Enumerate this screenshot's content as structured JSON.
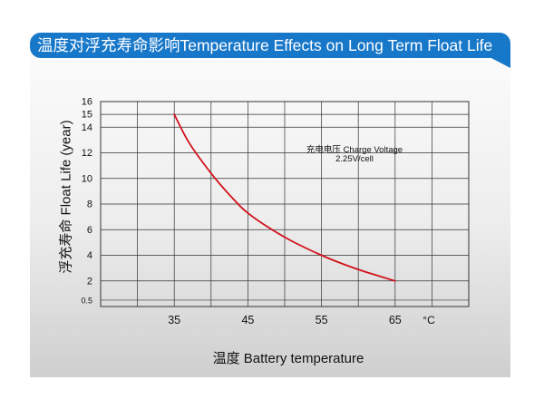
{
  "title": "温度对浮充寿命影响Temperature Effects on Long Term Float Life",
  "chart_data": {
    "type": "line",
    "xlabel": "温度  Battery temperature",
    "ylabel": "浮充寿命  Float Life (year)",
    "x_unit": "°C",
    "x_ticks": [
      35,
      45,
      55,
      65
    ],
    "x_range": [
      25,
      75
    ],
    "y_ticks": [
      "0.5",
      "2",
      "4",
      "6",
      "8",
      "10",
      "12",
      "14",
      "15",
      "16"
    ],
    "y_range": [
      0,
      16
    ],
    "grid": true,
    "annotation": [
      "充电电压 Charge Voltage",
      "2.25V/cell"
    ],
    "series": [
      {
        "color": "#d1121c",
        "points": [
          [
            35,
            15
          ],
          [
            37,
            12.8
          ],
          [
            40,
            10.4
          ],
          [
            43,
            8.4
          ],
          [
            45,
            7.3
          ],
          [
            48,
            6.1
          ],
          [
            51,
            5.1
          ],
          [
            55,
            4.0
          ],
          [
            58,
            3.3
          ],
          [
            61,
            2.7
          ],
          [
            65,
            2.0
          ]
        ]
      }
    ]
  }
}
